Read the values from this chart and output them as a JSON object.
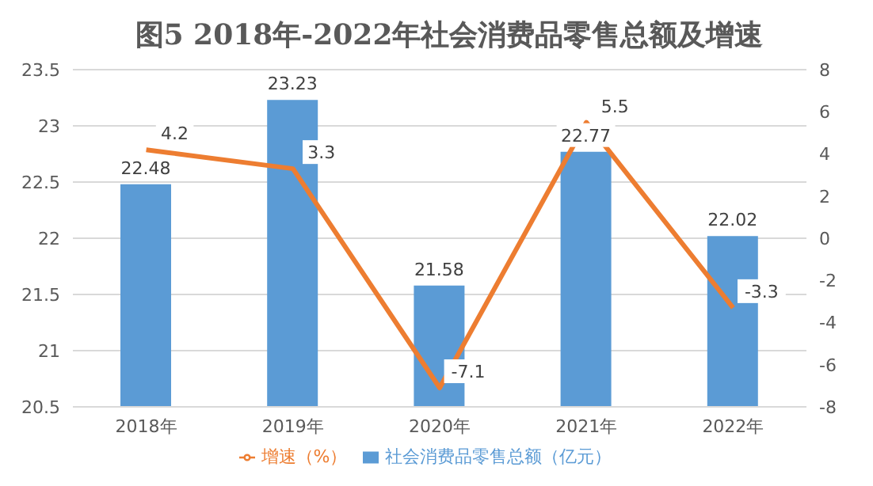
{
  "chart_data": {
    "type": "bar",
    "title": "图5  2018年-2022年社会消费品零售总额及增速",
    "categories": [
      "2018年",
      "2019年",
      "2020年",
      "2021年",
      "2022年"
    ],
    "series": [
      {
        "name": "社会消费品零售总额（亿元）",
        "color": "#5b9bd5",
        "values": [
          22.48,
          23.23,
          21.58,
          22.77,
          22.02
        ]
      },
      {
        "name": "增速（%）",
        "type": "line",
        "axis": "y2",
        "color": "#ed7d31",
        "values": [
          4.2,
          3.3,
          -7.1,
          5.5,
          -3.3
        ]
      }
    ],
    "ylim": [
      20.5,
      23.5
    ],
    "yticks": [
      20.5,
      21,
      21.5,
      22,
      22.5,
      23,
      23.5
    ],
    "y2lim": [
      -8,
      8
    ],
    "y2ticks": [
      -8,
      -6,
      -4,
      -2,
      0,
      2,
      4,
      6,
      8
    ],
    "grid": "y",
    "legend": "bottom",
    "data_labels": true,
    "marker": "none"
  }
}
